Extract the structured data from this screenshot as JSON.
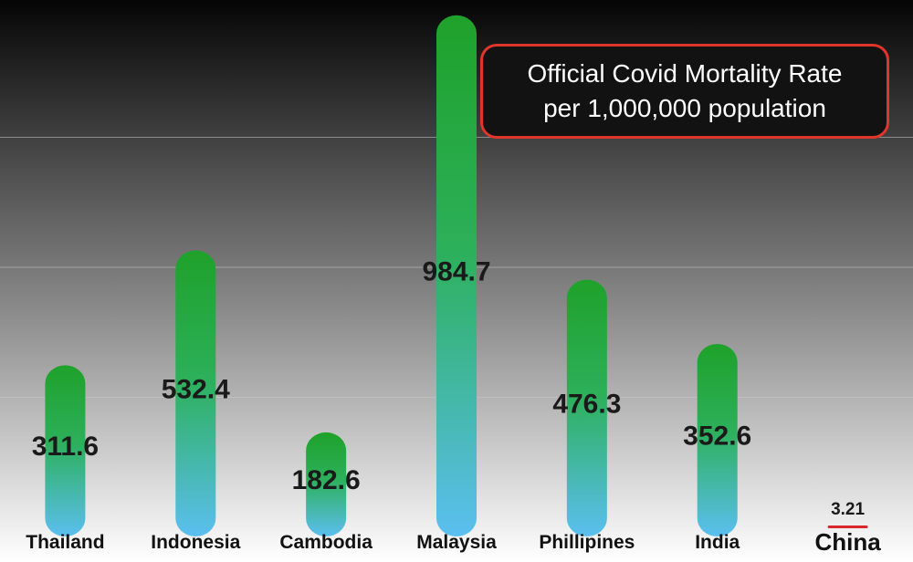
{
  "chart_data": {
    "type": "bar",
    "title": "Official Covid Mortality Rate",
    "subtitle": "per 1,000,000 population",
    "categories": [
      "Thailand",
      "Indonesia",
      "Cambodia",
      "Malaysia",
      "Phillipines",
      "India",
      "China"
    ],
    "values": [
      311.6,
      532.4,
      182.6,
      984.7,
      476.3,
      352.6,
      3.21
    ],
    "value_labels": [
      "311.6",
      "532.4",
      "182.6",
      "984.7",
      "476.3",
      "352.6",
      "3.21"
    ],
    "xlabel": "",
    "ylabel": "",
    "ylim": [
      0,
      1000
    ],
    "grid": true,
    "legend": "none",
    "title_placement": "top-right box",
    "colors": {
      "bar_top": "#1fa12a",
      "bar_bottom": "#5bbff0",
      "china_bar": "#d9262a",
      "background_top": "#050505",
      "background_bottom": "#ffffff",
      "title_border": "#e0352b",
      "title_background": "#121212",
      "title_text": "#ffffff"
    }
  }
}
